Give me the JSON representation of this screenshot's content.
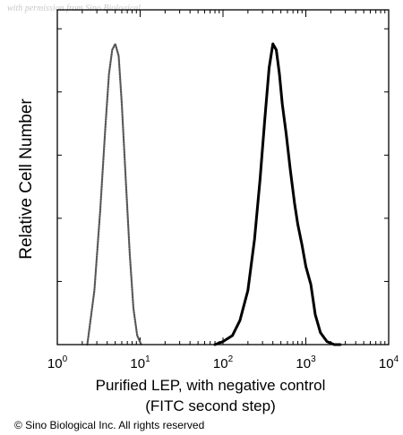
{
  "watermark": "with permission from Sino Biological",
  "copyright": "© Sino Biological Inc. All rights reserved",
  "chart_data": {
    "type": "line",
    "title": "",
    "xlabel": "Purified LEP, with negative control",
    "xlabel_line2": "(FITC second step)",
    "ylabel": "Relative Cell Number",
    "x_scale": "log",
    "xlim": [
      1,
      10000
    ],
    "ylim": [
      0,
      1
    ],
    "x_ticks": [
      {
        "base": "10",
        "exp": "0",
        "value": 1
      },
      {
        "base": "10",
        "exp": "1",
        "value": 10
      },
      {
        "base": "10",
        "exp": "2",
        "value": 100
      },
      {
        "base": "10",
        "exp": "3",
        "value": 1000
      },
      {
        "base": "10",
        "exp": "4",
        "value": 10000
      }
    ],
    "grid": false,
    "legend": "none",
    "series": [
      {
        "style": "dotted",
        "color": "#555555",
        "x": [
          2.3,
          2.8,
          3.3,
          3.8,
          4.2,
          4.6,
          5.0,
          5.5,
          6.0,
          6.7,
          7.5,
          8.3,
          9.2,
          10.3
        ],
        "y": [
          0.0,
          0.18,
          0.45,
          0.72,
          0.9,
          0.98,
          1.0,
          0.96,
          0.8,
          0.55,
          0.3,
          0.12,
          0.03,
          0.0
        ]
      },
      {
        "style": "solid",
        "color": "#000000",
        "x": [
          80,
          100,
          130,
          160,
          200,
          240,
          280,
          320,
          360,
          400,
          440,
          480,
          520,
          580,
          650,
          730,
          800,
          900,
          1000,
          1150,
          1300,
          1500,
          1800,
          2200,
          2600
        ],
        "y": [
          0.0,
          0.01,
          0.03,
          0.08,
          0.18,
          0.35,
          0.55,
          0.75,
          0.92,
          1.0,
          0.98,
          0.9,
          0.8,
          0.7,
          0.58,
          0.47,
          0.4,
          0.33,
          0.26,
          0.2,
          0.1,
          0.04,
          0.01,
          0.0,
          0.0
        ]
      }
    ]
  }
}
